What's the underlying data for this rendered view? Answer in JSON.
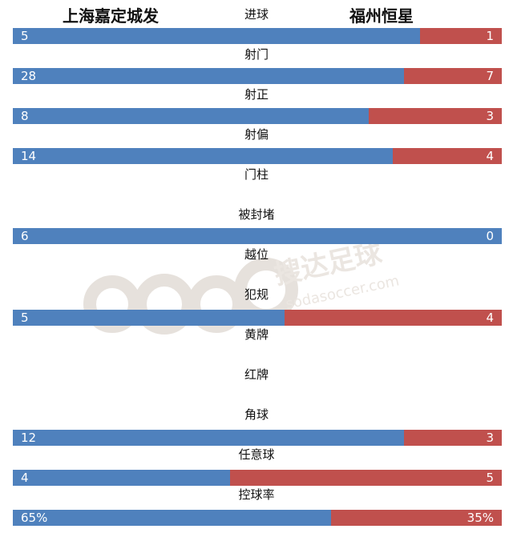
{
  "home_team": "上海嘉定城发",
  "away_team": "福州恒星",
  "colors": {
    "home": "#4f81bd",
    "away": "#c0504d"
  },
  "watermark": {
    "brand": "搜达足球",
    "url": "sodasoccer.com"
  },
  "chart_data": {
    "type": "bar",
    "orientation": "horizontal-stacked",
    "categories": [
      "进球",
      "射门",
      "射正",
      "射偏",
      "门柱",
      "被封堵",
      "越位",
      "犯规",
      "黄牌",
      "红牌",
      "角球",
      "任意球",
      "控球率"
    ],
    "series": [
      {
        "name": "上海嘉定城发",
        "values": [
          5,
          28,
          8,
          14,
          null,
          6,
          null,
          5,
          null,
          null,
          12,
          4,
          65
        ]
      },
      {
        "name": "福州恒星",
        "values": [
          1,
          7,
          3,
          4,
          null,
          0,
          null,
          4,
          null,
          null,
          3,
          5,
          35
        ]
      }
    ],
    "display": [
      [
        "5",
        "1"
      ],
      [
        "28",
        "7"
      ],
      [
        "8",
        "3"
      ],
      [
        "14",
        "4"
      ],
      null,
      [
        "6",
        "0"
      ],
      null,
      [
        "5",
        "4"
      ],
      null,
      null,
      [
        "12",
        "3"
      ],
      [
        "4",
        "5"
      ],
      [
        "65%",
        "35%"
      ]
    ]
  }
}
